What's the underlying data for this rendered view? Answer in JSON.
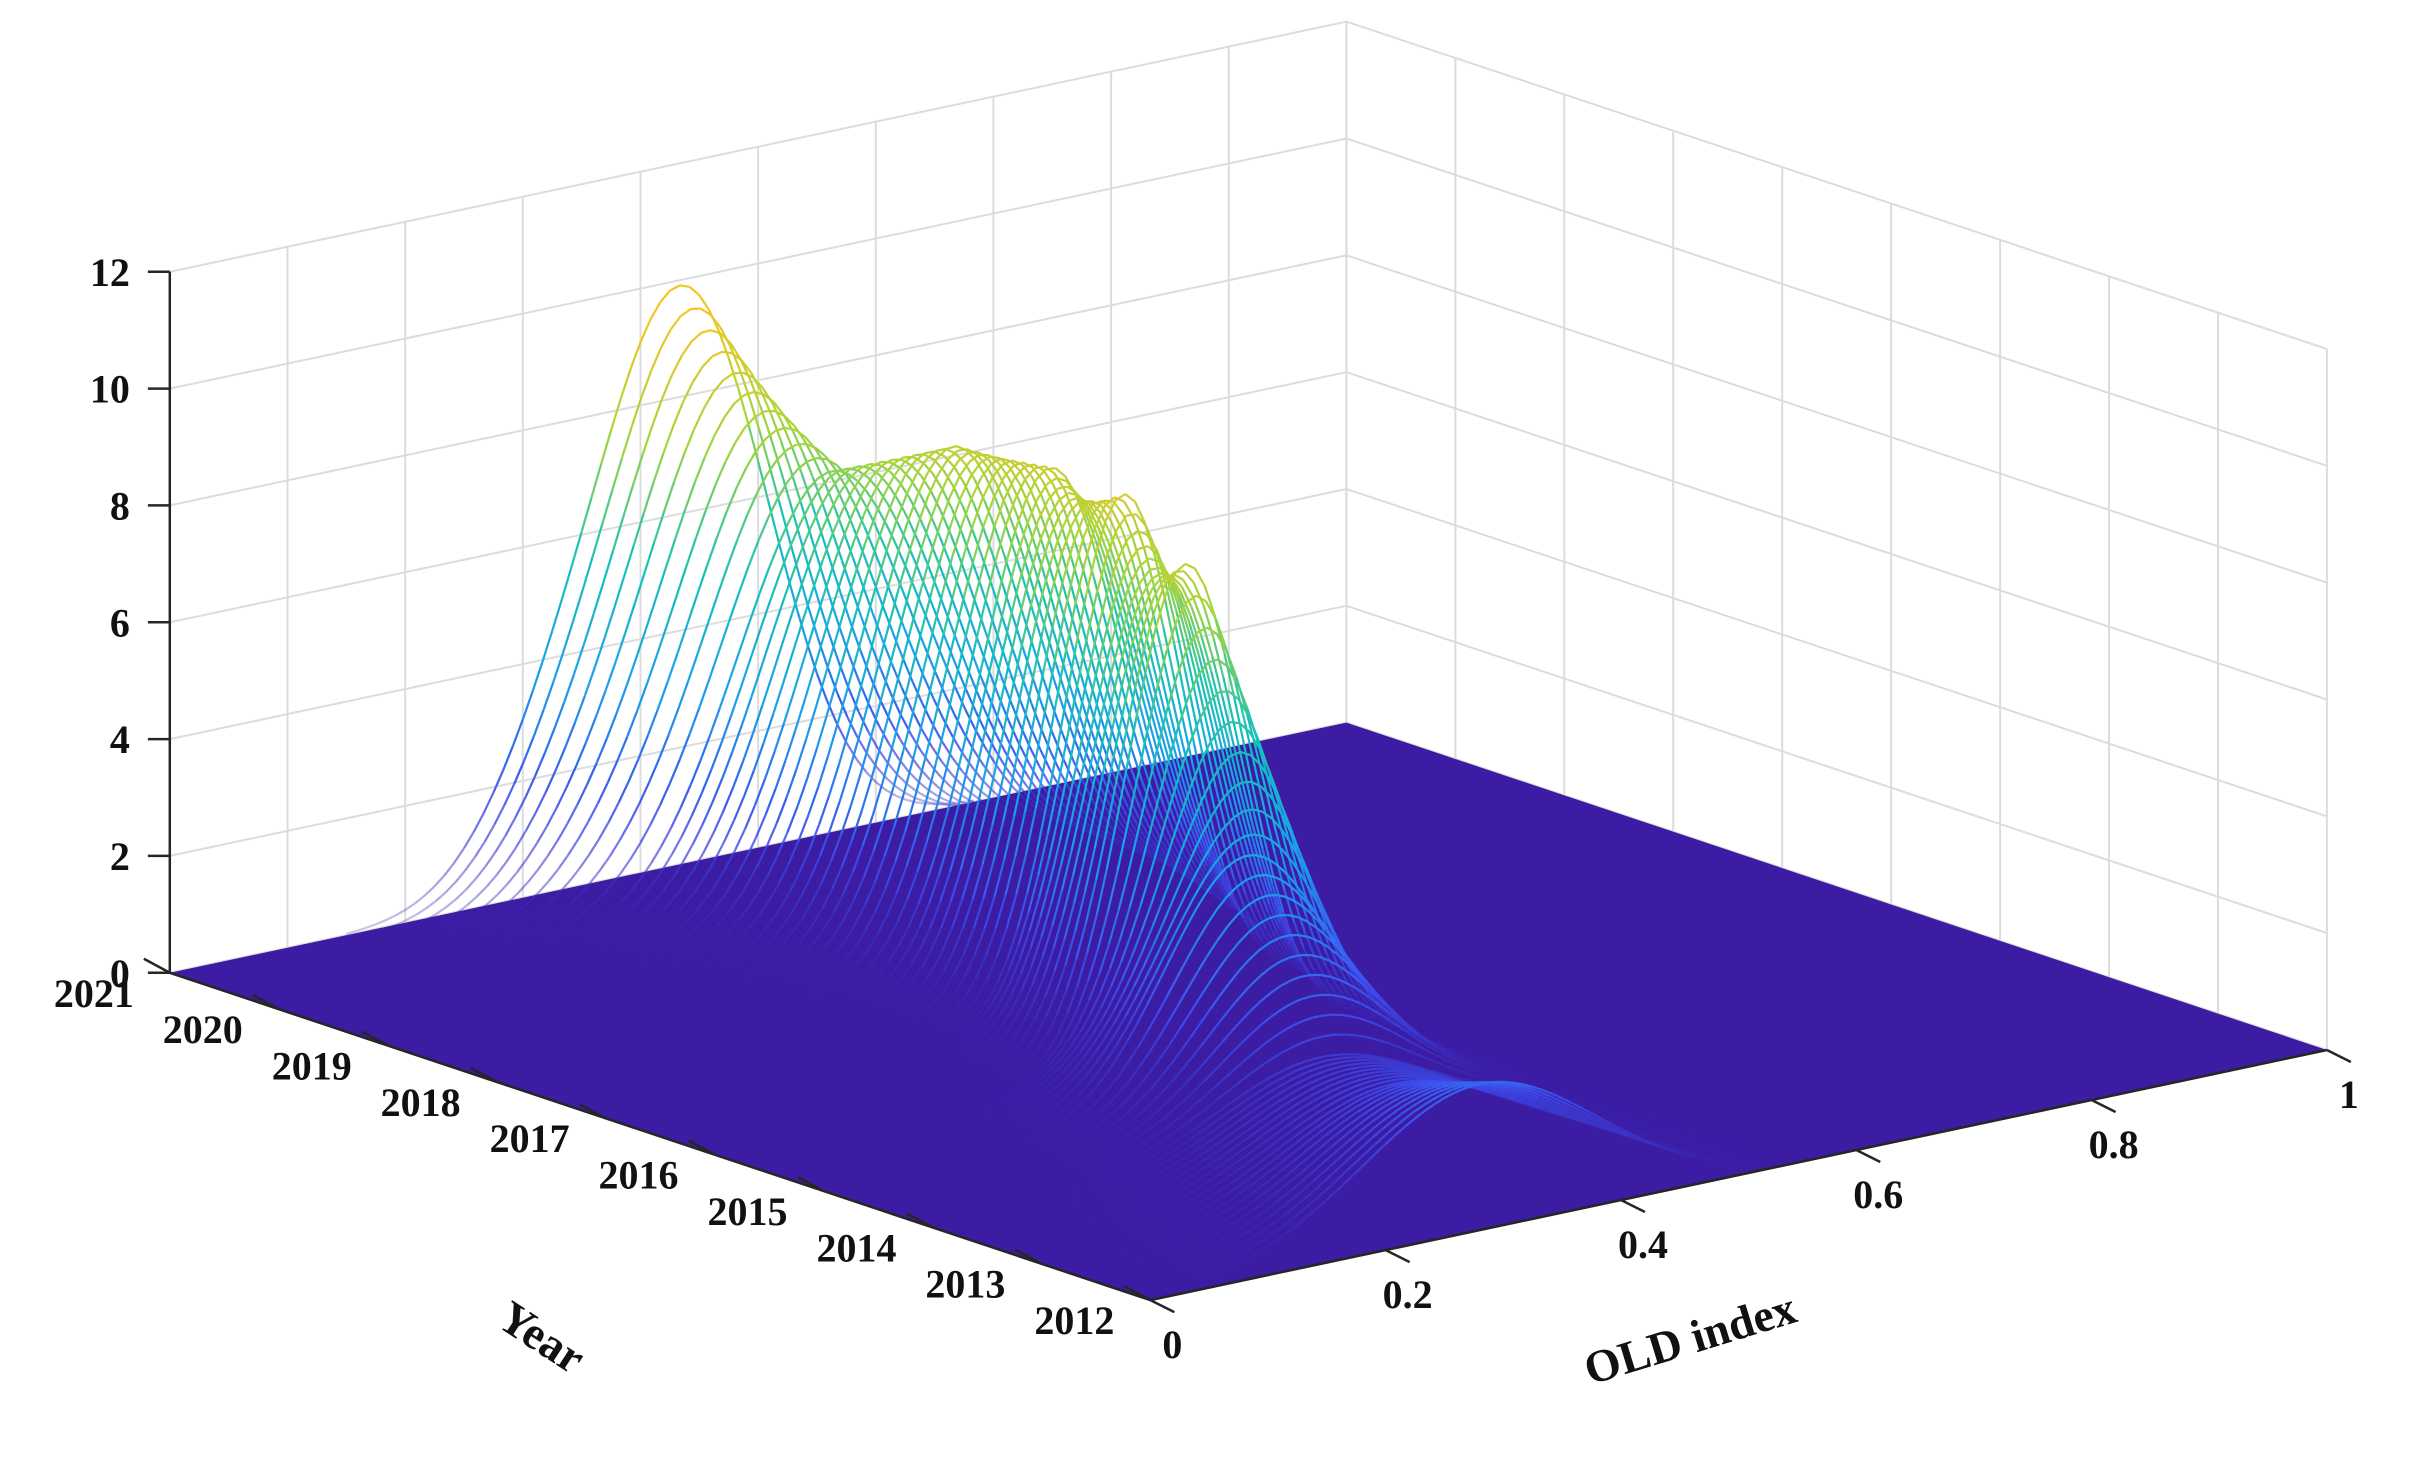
{
  "chart_data": {
    "type": "surface3d",
    "title": "",
    "xlabel": "OLD index",
    "ylabel": "Year",
    "zlabel": "",
    "xlim": [
      0,
      1
    ],
    "ylim": [
      2012,
      2021
    ],
    "zlim": [
      0,
      12
    ],
    "x_ticks": [
      "0",
      "0.2",
      "0.4",
      "0.6",
      "0.8",
      "1"
    ],
    "y_ticks": [
      "2012",
      "2013",
      "2014",
      "2015",
      "2016",
      "2017",
      "2018",
      "2019",
      "2020",
      "2021"
    ],
    "z_ticks": [
      "0",
      "2",
      "4",
      "6",
      "8",
      "10",
      "12"
    ],
    "grid": true,
    "colormap": [
      "#3a1fa8",
      "#3f4ef0",
      "#1aa0ec",
      "#17c3b4",
      "#a6d53a",
      "#f4c623"
    ],
    "floor_color": "#3b1ca3",
    "series": [
      {
        "year": 2012,
        "peaks": [
          {
            "x": 0.28,
            "height": 2.5,
            "width": 0.1
          }
        ]
      },
      {
        "year": 2013,
        "peaks": [
          {
            "x": 0.3,
            "height": 1.8,
            "width": 0.1
          }
        ]
      },
      {
        "year": 2014,
        "peaks": [
          {
            "x": 0.33,
            "height": 1.5,
            "width": 0.09
          }
        ]
      },
      {
        "year": 2015,
        "peaks": [
          {
            "x": 0.36,
            "height": 4.2,
            "width": 0.07
          }
        ]
      },
      {
        "year": 2016,
        "peaks": [
          {
            "x": 0.4,
            "height": 8.4,
            "width": 0.05
          }
        ]
      },
      {
        "year": 2017,
        "peaks": [
          {
            "x": 0.44,
            "height": 8.8,
            "width": 0.05
          }
        ]
      },
      {
        "year": 2018,
        "peaks": [
          {
            "x": 0.47,
            "height": 8.5,
            "width": 0.06
          }
        ]
      },
      {
        "year": 2019,
        "peaks": [
          {
            "x": 0.48,
            "height": 8.2,
            "width": 0.07
          }
        ]
      },
      {
        "year": 2020,
        "peaks": [
          {
            "x": 0.47,
            "height": 7.2,
            "width": 0.08
          }
        ]
      },
      {
        "year": 2021,
        "peaks": [
          {
            "x": 0.44,
            "height": 9.5,
            "width": 0.07
          },
          {
            "x": 0.33,
            "height": 2.0,
            "width": 0.06
          }
        ]
      }
    ]
  }
}
